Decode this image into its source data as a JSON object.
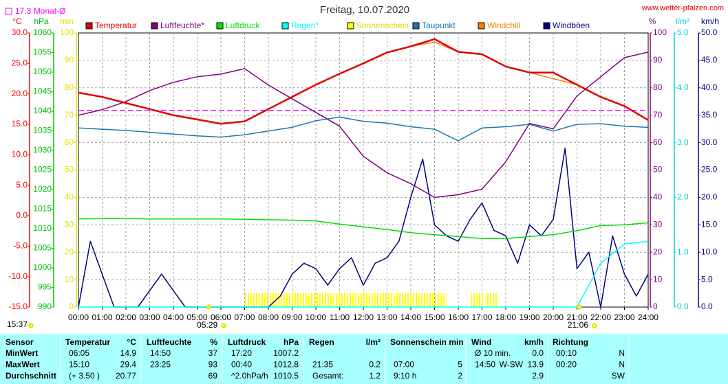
{
  "chart_data": {
    "type": "line",
    "title": "Freitag, 10.07.2020",
    "source": "www.wetter-pfalzen.com",
    "updated": "15:37",
    "monthly_avg": {
      "value": 17.3,
      "label": "17.3 Monat-Ø"
    },
    "monthly_avg_color": "#ff00ff",
    "sunrise": {
      "value": 5.483,
      "label": "05:29"
    },
    "sunset": {
      "value": 21.1,
      "label": "21:06"
    },
    "grid": true,
    "xlim": [
      0,
      24
    ],
    "xticks": [
      {
        "value": 0,
        "label": "00:00"
      },
      {
        "value": 1,
        "label": "01:00"
      },
      {
        "value": 2,
        "label": "02:00"
      },
      {
        "value": 3,
        "label": "03:00"
      },
      {
        "value": 4,
        "label": "04:00"
      },
      {
        "value": 5,
        "label": "05:00"
      },
      {
        "value": 6,
        "label": "06:00"
      },
      {
        "value": 7,
        "label": "07:00"
      },
      {
        "value": 8,
        "label": "08:00"
      },
      {
        "value": 9,
        "label": "09:00"
      },
      {
        "value": 10,
        "label": "10:00"
      },
      {
        "value": 11,
        "label": "11:00"
      },
      {
        "value": 12,
        "label": "12:00"
      },
      {
        "value": 13,
        "label": "13:00"
      },
      {
        "value": 14,
        "label": "14:00"
      },
      {
        "value": 15,
        "label": "15:00"
      },
      {
        "value": 16,
        "label": "16:00"
      },
      {
        "value": 17,
        "label": "17:00"
      },
      {
        "value": 18,
        "label": "18:00"
      },
      {
        "value": 19,
        "label": "19:00"
      },
      {
        "value": 20,
        "label": "20:00"
      },
      {
        "value": 21,
        "label": "21:00"
      },
      {
        "value": 22,
        "label": "22:00"
      },
      {
        "value": 23,
        "label": "23:00"
      },
      {
        "value": 24,
        "label": "24:00"
      }
    ],
    "x": [
      0,
      1,
      2,
      3,
      4,
      5,
      6,
      7,
      8,
      9,
      10,
      11,
      12,
      13,
      14,
      15,
      16,
      17,
      18,
      19,
      20,
      21,
      22,
      23,
      24
    ],
    "axes": [
      {
        "unit": "°C",
        "color": "#ff0000",
        "lim": [
          -15,
          30
        ],
        "ticks": [
          {
            "value": -15,
            "label": "-15.0"
          },
          {
            "value": -10,
            "label": "-10.0"
          },
          {
            "value": -5,
            "label": "-5.0"
          },
          {
            "value": 0,
            "label": "0.0"
          },
          {
            "value": 5,
            "label": "5.0"
          },
          {
            "value": 10,
            "label": "10.0"
          },
          {
            "value": 15,
            "label": "15.0"
          },
          {
            "value": 20,
            "label": "20.0"
          },
          {
            "value": 25,
            "label": "25.0"
          },
          {
            "value": 30,
            "label": "30.0"
          }
        ]
      },
      {
        "unit": "hPa",
        "color": "#00c000",
        "lim": [
          990,
          1060
        ],
        "ticks": [
          990,
          995,
          1000,
          1005,
          1010,
          1015,
          1020,
          1025,
          1030,
          1035,
          1040,
          1045,
          1050,
          1055,
          1060
        ]
      },
      {
        "unit": "min",
        "color": "#e0e000",
        "lim": [
          0,
          100
        ],
        "ticks": [
          0,
          10,
          20,
          30,
          40,
          50,
          60,
          70,
          80,
          90,
          100
        ]
      },
      {
        "unit": "%",
        "color": "#800080",
        "lim": [
          0,
          100
        ],
        "ticks": [
          0,
          10,
          20,
          30,
          40,
          50,
          60,
          70,
          80,
          90,
          100
        ]
      },
      {
        "unit": "l/m²",
        "color": "#00d0d0",
        "lim": [
          0,
          5
        ],
        "ticks": [
          {
            "value": 0,
            "label": "0.0"
          },
          {
            "value": 1,
            "label": "1.0"
          },
          {
            "value": 2,
            "label": "2.0"
          },
          {
            "value": 3,
            "label": "3.0"
          },
          {
            "value": 4,
            "label": "4.0"
          },
          {
            "value": 5,
            "label": "5.0"
          }
        ]
      },
      {
        "unit": "km/h",
        "color": "#000080",
        "lim": [
          0,
          50
        ],
        "ticks": [
          {
            "value": 0,
            "label": "0.0"
          },
          {
            "value": 5,
            "label": "5.0"
          },
          {
            "value": 10,
            "label": "10.0"
          },
          {
            "value": 15,
            "label": "15.0"
          },
          {
            "value": 20,
            "label": "20.0"
          },
          {
            "value": 25,
            "label": "25.0"
          },
          {
            "value": 30,
            "label": "30.0"
          },
          {
            "value": 35,
            "label": "35.0"
          },
          {
            "value": 40,
            "label": "40.0"
          },
          {
            "value": 45,
            "label": "45.0"
          },
          {
            "value": 50,
            "label": "50.0"
          }
        ]
      }
    ],
    "series": [
      {
        "name": "Temperatur",
        "color": "#e00000",
        "axis": 0,
        "values": [
          20.2,
          19.5,
          18.5,
          17.5,
          16.5,
          15.8,
          15.1,
          15.5,
          17.5,
          19.5,
          21.5,
          23.3,
          25,
          26.8,
          27.8,
          29,
          26.9,
          26.5,
          24.5,
          23.5,
          23.5,
          21.5,
          19.5,
          18,
          15.7
        ]
      },
      {
        "name": "Luftfeuchte*",
        "color": "#800080",
        "axis": 3,
        "values": [
          70,
          72,
          75,
          79,
          82,
          84,
          85,
          87,
          81,
          76,
          71,
          66,
          55,
          49,
          45,
          40,
          41,
          43,
          53,
          67,
          65,
          77,
          84,
          91,
          93
        ]
      },
      {
        "name": "Luftdruck",
        "color": "#00e000",
        "axis": 1,
        "values": [
          1012.5,
          1012.6,
          1012.6,
          1012.5,
          1012.5,
          1012.5,
          1012.5,
          1012.4,
          1012.3,
          1012.2,
          1012,
          1011.2,
          1010.5,
          1009.8,
          1009,
          1008.5,
          1008,
          1007.5,
          1007.5,
          1008,
          1008.5,
          1009.5,
          1010.8,
          1011,
          1011.5
        ]
      },
      {
        "name": "Regen*",
        "color": "#00ffff",
        "axis": 4,
        "values": [
          0,
          0,
          0,
          0,
          0,
          0,
          0,
          0,
          0,
          0,
          0,
          0,
          0,
          0,
          0,
          0,
          0,
          0,
          0,
          0,
          0,
          0,
          0.8,
          1.15,
          1.2
        ]
      },
      {
        "name": "Sonnenschein",
        "color": "#ffff00",
        "axis": 2,
        "kind": "bar",
        "x": [
          7,
          7.5,
          8,
          8.5,
          9,
          9.5,
          10,
          10.5,
          11,
          11.5,
          12,
          12.5,
          13,
          13.5,
          14,
          14.5,
          15,
          16.55,
          17.15
        ],
        "values": [
          5,
          5,
          5,
          5,
          5,
          5,
          5,
          5,
          5,
          5,
          5,
          5,
          5,
          5,
          5,
          5,
          5,
          5,
          5
        ]
      },
      {
        "name": "Taupunkt",
        "color": "#1878b0",
        "axis": 0,
        "values": [
          14.4,
          14.2,
          14,
          13.7,
          13.4,
          13.1,
          12.9,
          13.3,
          13.9,
          14.5,
          15.6,
          16.2,
          15.5,
          15.2,
          14.6,
          14.2,
          12.3,
          14.4,
          14.6,
          15,
          13.9,
          15,
          15.1,
          14.7,
          14.5
        ]
      },
      {
        "name": "Windchill",
        "color": "#ff8000",
        "axis": 0,
        "values": [
          20.2,
          19.5,
          18.5,
          17.5,
          16.5,
          15.8,
          15.1,
          15.5,
          17.5,
          19.5,
          21.5,
          23.3,
          25,
          26.8,
          27.8,
          28.5,
          26.9,
          26.5,
          24.5,
          23.5,
          22.5,
          21.5,
          19.5,
          18,
          15.7
        ]
      },
      {
        "name": "Windböen",
        "color": "#000080",
        "axis": 5,
        "x": [
          0,
          0.5,
          1,
          1.5,
          2,
          2.5,
          3,
          3.5,
          4,
          4.5,
          5,
          5.5,
          6,
          6.5,
          7,
          7.5,
          8,
          8.5,
          9,
          9.5,
          10,
          10.5,
          11,
          11.5,
          12,
          12.5,
          13,
          13.5,
          14,
          14.5,
          15,
          15.5,
          16,
          16.5,
          17,
          17.5,
          18,
          18.5,
          19,
          19.5,
          20,
          20.5,
          21,
          21.5,
          22,
          22.5,
          23,
          23.5,
          24
        ],
        "values": [
          0,
          12,
          6,
          0,
          0,
          0,
          3,
          6,
          3,
          0,
          0,
          0,
          0,
          0,
          0,
          0,
          0,
          2,
          6,
          8,
          7,
          4,
          7,
          9,
          4,
          8,
          9,
          12,
          20,
          27,
          15,
          13,
          12,
          16,
          19,
          14,
          13,
          8,
          15,
          13,
          16,
          29,
          7,
          10,
          0,
          13,
          6,
          2,
          6
        ]
      }
    ]
  },
  "table": {
    "columns": [
      {
        "name": "Sensor"
      },
      {
        "name": "Temperatur",
        "unit": "°C"
      },
      {
        "name": "Luftfeuchte",
        "unit": "%"
      },
      {
        "name": "Luftdruck",
        "unit": "hPa"
      },
      {
        "name": "Regen",
        "unit": "l/m²"
      },
      {
        "name": "Sonnenschein min"
      },
      {
        "name": "Wind",
        "unit": "km/h"
      },
      {
        "name": "Richtung"
      }
    ],
    "rows": [
      {
        "label": "MinWert",
        "cells": [
          [
            "06:05",
            "14.9"
          ],
          [
            "14:50",
            "37"
          ],
          [
            "17:20",
            "1007.2"
          ],
          [],
          [],
          [
            "Ø 10 min.",
            "0.0"
          ],
          [
            "00:10",
            "N"
          ]
        ]
      },
      {
        "label": "MaxWert",
        "cells": [
          [
            "15:10",
            "29.4"
          ],
          [
            "23:25",
            "93"
          ],
          [
            "00:40",
            "1012.8"
          ],
          [
            "21:35",
            "0.2"
          ],
          [
            "07:00",
            "5"
          ],
          [
            "14:50",
            "W-SW",
            "13.9"
          ],
          [
            "00:20",
            "N"
          ]
        ]
      },
      {
        "label": "Durchschnitt",
        "cells": [
          [
            "(+ 3.50 )",
            "20.77"
          ],
          [
            "69"
          ],
          [
            "^2.0hPa/h",
            "1010.5"
          ],
          [
            "Gesamt:",
            "1.2"
          ],
          [
            "9:10 h",
            "2"
          ],
          [
            "2.9"
          ],
          [
            "SW"
          ]
        ]
      }
    ]
  }
}
